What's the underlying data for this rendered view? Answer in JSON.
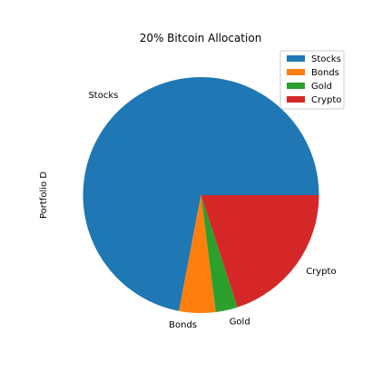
{
  "chart_data": {
    "type": "pie",
    "title": "20% Bitcoin Allocation",
    "ylabel": "Portfolio D",
    "xlabel": "",
    "labels": [
      "Stocks",
      "Bonds",
      "Gold",
      "Crypto"
    ],
    "values": [
      72,
      5,
      3,
      20
    ],
    "colors": [
      "#1f77b4",
      "#ff7f0e",
      "#2ca02c",
      "#d62728"
    ],
    "start_angle_deg": 0,
    "direction": "counterclockwise",
    "legend": {
      "placement": "top-right",
      "entries": [
        "Stocks",
        "Bonds",
        "Gold",
        "Crypto"
      ]
    }
  }
}
